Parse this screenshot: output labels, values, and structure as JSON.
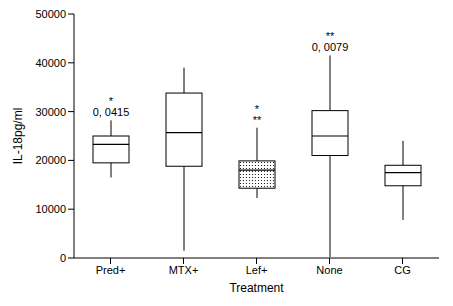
{
  "chart_data": {
    "type": "box",
    "x_label": "Treatment",
    "y_label": "IL-18pg/ml",
    "categories": [
      "Pred+",
      "MTX+",
      "Lef+",
      "None",
      "CG"
    ],
    "boxes": [
      {
        "min": 16500,
        "q1": 19500,
        "median": 23300,
        "q3": 25000,
        "max": 28200
      },
      {
        "min": 1500,
        "q1": 18800,
        "median": 25700,
        "q3": 33800,
        "max": 39000
      },
      {
        "min": 12300,
        "q1": 14300,
        "median": 18000,
        "q3": 19900,
        "max": 26700
      },
      {
        "min": 200,
        "q1": 21000,
        "median": 25000,
        "q3": 30200,
        "max": 41500
      },
      {
        "min": 7800,
        "q1": 14800,
        "median": 17500,
        "q3": 19000,
        "max": 24000
      }
    ],
    "annotations": [
      {
        "category": "Pred+",
        "text": [
          "*",
          "0, 0415"
        ]
      },
      {
        "category": "Lef+",
        "text": [
          "*",
          "**"
        ]
      },
      {
        "category": "None",
        "text": [
          "**",
          "0, 0079"
        ]
      }
    ],
    "ylim": [
      0,
      50000
    ],
    "yticks": [
      0,
      10000,
      20000,
      30000,
      40000,
      50000
    ],
    "color": "#000000",
    "grid": false
  }
}
